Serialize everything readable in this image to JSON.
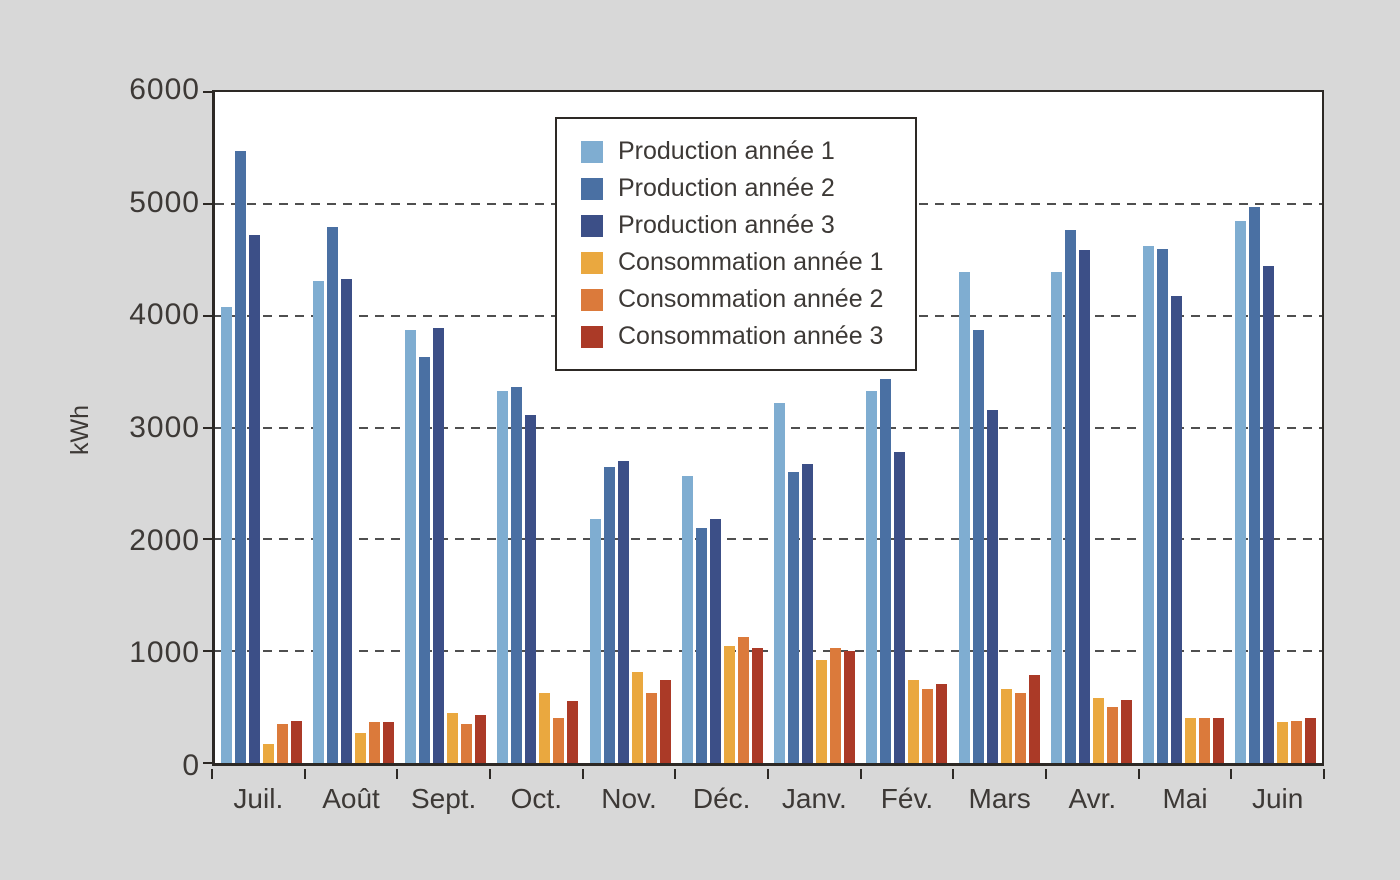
{
  "chart_data": {
    "type": "bar",
    "title": "",
    "xlabel": "",
    "ylabel": "kWh",
    "ylim": [
      0,
      6000
    ],
    "ytick_interval": 1000,
    "yticks": [
      "0",
      "1000",
      "2000",
      "3000",
      "4000",
      "5000",
      "6000"
    ],
    "grid": "horizontal dashed lines at 1000, 2000, 3000, 4000, 5000",
    "legend_position": "inside top-center, boxed",
    "categories": [
      "Juil.",
      "Août",
      "Sept.",
      "Oct.",
      "Nov.",
      "Déc.",
      "Janv.",
      "Fév.",
      "Mars",
      "Avr.",
      "Mai",
      "Juin"
    ],
    "series": [
      {
        "name": "Production année 1",
        "color": "#7fadd1",
        "values": [
          4080,
          4310,
          3870,
          3330,
          2180,
          2570,
          3220,
          3330,
          4390,
          4390,
          4620,
          4850
        ]
      },
      {
        "name": "Production année 2",
        "color": "#4a70a3",
        "values": [
          5470,
          4790,
          3630,
          3360,
          2650,
          2100,
          2600,
          3430,
          3870,
          4770,
          4600,
          4970
        ]
      },
      {
        "name": "Production année 3",
        "color": "#3c4f87",
        "values": [
          4720,
          4330,
          3890,
          3110,
          2700,
          2180,
          2670,
          2780,
          3160,
          4590,
          4180,
          4440
        ]
      },
      {
        "name": "Consommation année 1",
        "color": "#eaa83f",
        "values": [
          170,
          265,
          450,
          630,
          815,
          1050,
          920,
          740,
          665,
          585,
          400,
          370
        ]
      },
      {
        "name": "Consommation année 2",
        "color": "#db7a3b",
        "values": [
          345,
          370,
          345,
          400,
          630,
          1125,
          1025,
          665,
          630,
          505,
          400,
          375
        ]
      },
      {
        "name": "Consommation année 3",
        "color": "#ab3a27",
        "values": [
          375,
          370,
          425,
          555,
          740,
          1030,
          1000,
          710,
          790,
          560,
          400,
          405
        ]
      }
    ],
    "colors": {
      "background": "#d8d8d8",
      "plot_background": "#ffffff",
      "axis": "#2d2925",
      "gridline": "#4f4f4f",
      "text": "#3d3936"
    }
  }
}
